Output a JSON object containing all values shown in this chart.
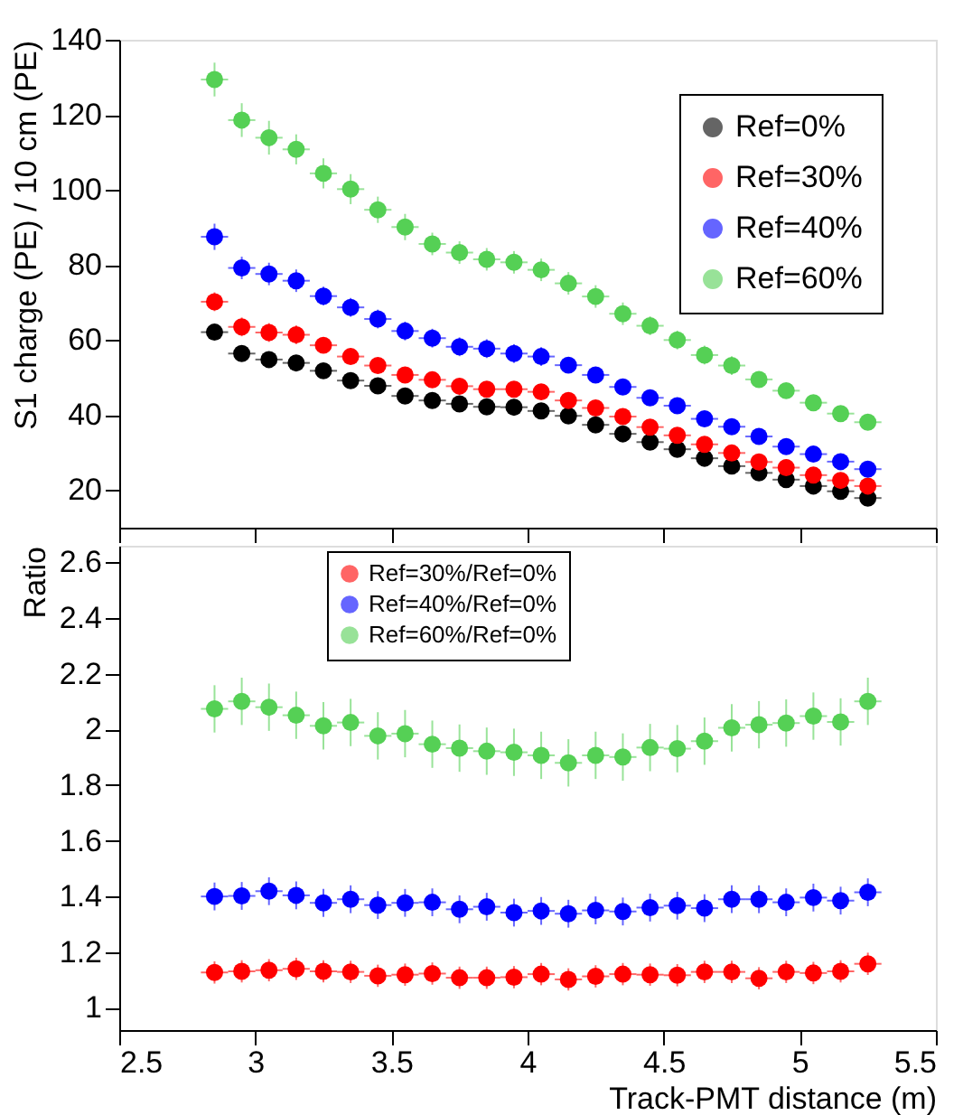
{
  "chart_data": [
    {
      "type": "scatter",
      "ylabel": "S1 charge (PE) / 10 cm (PE)",
      "xlim": [
        2.5,
        5.5
      ],
      "xticks": [
        2.5,
        3,
        3.5,
        4,
        4.5,
        5,
        5.5
      ],
      "ylim": [
        10,
        140
      ],
      "yticks": [
        20,
        40,
        60,
        80,
        100,
        120,
        140
      ],
      "tick_labels": "y",
      "grid": false,
      "legend": "top right",
      "marker": "circle",
      "x": [
        2.85,
        2.95,
        3.05,
        3.15,
        3.25,
        3.35,
        3.45,
        3.55,
        3.65,
        3.75,
        3.85,
        3.95,
        4.05,
        4.15,
        4.25,
        4.35,
        4.45,
        4.55,
        4.65,
        4.75,
        4.85,
        4.95,
        5.05,
        5.15,
        5.25
      ],
      "series": [
        {
          "name": "Ref=0%",
          "color": "#000000",
          "values": [
            62.1,
            56.4,
            54.8,
            53.9,
            51.8,
            49.2,
            47.8,
            45.1,
            43.9,
            43.0,
            42.2,
            42.1,
            41.1,
            39.8,
            37.4,
            35.0,
            32.8,
            30.9,
            28.5,
            26.4,
            24.6,
            22.8,
            21.1,
            19.7,
            17.9
          ],
          "errors": [
            2,
            2,
            2,
            2,
            1.5,
            1.5,
            1.5,
            1.5,
            1.5,
            1.5,
            1.5,
            1.5,
            1.5,
            1.5,
            1.5,
            1.5,
            1.5,
            1.5,
            1.5,
            1.5,
            1.5,
            1.5,
            1.5,
            1.5,
            1.5
          ],
          "xerrors": [
            0.05,
            0.05,
            0.05,
            0.05,
            0.05,
            0.05,
            0.05,
            0.05,
            0.05,
            0.05,
            0.05,
            0.05,
            0.05,
            0.05,
            0.05,
            0.05,
            0.05,
            0.05,
            0.05,
            0.05,
            0.05,
            0.05,
            0.05,
            0.05,
            0.05
          ]
        },
        {
          "name": "Ref=30%",
          "color": "#ff0000",
          "values": [
            70.2,
            63.5,
            62.0,
            61.4,
            58.6,
            55.6,
            53.2,
            50.7,
            49.4,
            47.7,
            46.9,
            46.9,
            46.2,
            43.9,
            41.9,
            39.6,
            36.8,
            34.6,
            32.2,
            29.9,
            27.5,
            26.0,
            24.0,
            22.6,
            21.1
          ],
          "errors": [
            2.5,
            2.5,
            2.5,
            2.5,
            2,
            2,
            2,
            2,
            2,
            2,
            2,
            2,
            2,
            2,
            2,
            2,
            2,
            2,
            2,
            1.5,
            1.5,
            1.5,
            1.5,
            1.5,
            1.5
          ],
          "xerrors": [
            0.05,
            0.05,
            0.05,
            0.05,
            0.05,
            0.05,
            0.05,
            0.05,
            0.05,
            0.05,
            0.05,
            0.05,
            0.05,
            0.05,
            0.05,
            0.05,
            0.05,
            0.05,
            0.05,
            0.05,
            0.05,
            0.05,
            0.05,
            0.05,
            0.05
          ]
        },
        {
          "name": "Ref=40%",
          "color": "#0000ff",
          "values": [
            87.5,
            79.2,
            77.6,
            75.8,
            71.7,
            68.7,
            65.6,
            62.4,
            60.5,
            58.2,
            57.7,
            56.4,
            55.6,
            53.3,
            50.7,
            47.5,
            44.6,
            42.5,
            39.0,
            36.9,
            34.3,
            31.6,
            29.6,
            27.6,
            25.6
          ],
          "errors": [
            3.5,
            3,
            3,
            3,
            2.5,
            2.5,
            2.5,
            2.5,
            2.5,
            2.5,
            2.5,
            2.5,
            2.5,
            2,
            2,
            2,
            2,
            2,
            2,
            2,
            2,
            2,
            2,
            2,
            2
          ],
          "xerrors": [
            0.05,
            0.05,
            0.05,
            0.05,
            0.05,
            0.05,
            0.05,
            0.05,
            0.05,
            0.05,
            0.05,
            0.05,
            0.05,
            0.05,
            0.05,
            0.05,
            0.05,
            0.05,
            0.05,
            0.05,
            0.05,
            0.05,
            0.05,
            0.05,
            0.05
          ]
        },
        {
          "name": "Ref=60%",
          "color": "#55d055",
          "values": [
            129.4,
            118.6,
            113.9,
            110.8,
            104.4,
            100.2,
            94.7,
            90.1,
            85.6,
            83.3,
            81.5,
            80.7,
            78.7,
            75.1,
            71.6,
            67.0,
            63.8,
            60.0,
            56.0,
            53.2,
            49.5,
            46.5,
            43.3,
            40.4,
            38.1
          ],
          "errors": [
            4.5,
            4.5,
            4.5,
            4,
            4,
            4,
            3.5,
            3.5,
            3,
            3,
            3,
            3,
            3,
            3,
            3,
            3,
            2.5,
            2.5,
            2.5,
            2.5,
            2,
            2,
            2,
            2,
            2
          ],
          "xerrors": [
            0.05,
            0.05,
            0.05,
            0.05,
            0.05,
            0.05,
            0.05,
            0.05,
            0.05,
            0.05,
            0.05,
            0.05,
            0.05,
            0.05,
            0.05,
            0.05,
            0.05,
            0.05,
            0.05,
            0.05,
            0.05,
            0.05,
            0.05,
            0.05,
            0.05
          ]
        }
      ]
    },
    {
      "type": "scatter",
      "xlabel": "Track-PMT distance (m)",
      "ylabel": "Ratio",
      "xlim": [
        2.5,
        5.5
      ],
      "xticks": [
        2.5,
        3,
        3.5,
        4,
        4.5,
        5,
        5.5
      ],
      "ylim": [
        0.92,
        2.66
      ],
      "yticks": [
        1,
        1.2,
        1.4,
        1.6,
        1.8,
        2,
        2.2,
        2.4,
        2.6
      ],
      "grid": false,
      "legend": "top",
      "marker": "circle",
      "x": [
        2.85,
        2.95,
        3.05,
        3.15,
        3.25,
        3.35,
        3.45,
        3.55,
        3.65,
        3.75,
        3.85,
        3.95,
        4.05,
        4.15,
        4.25,
        4.35,
        4.45,
        4.55,
        4.65,
        4.75,
        4.85,
        4.95,
        5.05,
        5.15,
        5.25
      ],
      "series": [
        {
          "name": "Ref=30%/Ref=0%",
          "color": "#ff0000",
          "values": [
            1.127,
            1.131,
            1.135,
            1.14,
            1.131,
            1.129,
            1.115,
            1.119,
            1.123,
            1.108,
            1.108,
            1.11,
            1.121,
            1.102,
            1.113,
            1.121,
            1.119,
            1.117,
            1.129,
            1.129,
            1.106,
            1.129,
            1.125,
            1.131,
            1.158
          ],
          "errors": [
            0.04,
            0.04,
            0.04,
            0.04,
            0.04,
            0.04,
            0.04,
            0.04,
            0.04,
            0.04,
            0.04,
            0.04,
            0.04,
            0.04,
            0.04,
            0.04,
            0.04,
            0.04,
            0.04,
            0.04,
            0.04,
            0.04,
            0.04,
            0.04,
            0.04
          ],
          "xerrors": [
            0.05,
            0.05,
            0.05,
            0.05,
            0.05,
            0.05,
            0.05,
            0.05,
            0.05,
            0.05,
            0.05,
            0.05,
            0.05,
            0.05,
            0.05,
            0.05,
            0.05,
            0.05,
            0.05,
            0.05,
            0.05,
            0.05,
            0.05,
            0.05,
            0.05
          ]
        },
        {
          "name": "Ref=40%/Ref=0%",
          "color": "#0000ff",
          "values": [
            1.4,
            1.402,
            1.419,
            1.404,
            1.377,
            1.39,
            1.369,
            1.377,
            1.379,
            1.354,
            1.363,
            1.342,
            1.348,
            1.338,
            1.35,
            1.346,
            1.36,
            1.367,
            1.358,
            1.39,
            1.39,
            1.379,
            1.396,
            1.385,
            1.415
          ],
          "errors": [
            0.05,
            0.05,
            0.05,
            0.05,
            0.05,
            0.05,
            0.05,
            0.05,
            0.05,
            0.05,
            0.05,
            0.05,
            0.05,
            0.05,
            0.05,
            0.05,
            0.05,
            0.05,
            0.05,
            0.05,
            0.05,
            0.05,
            0.05,
            0.05,
            0.05
          ],
          "xerrors": [
            0.05,
            0.05,
            0.05,
            0.05,
            0.05,
            0.05,
            0.05,
            0.05,
            0.05,
            0.05,
            0.05,
            0.05,
            0.05,
            0.05,
            0.05,
            0.05,
            0.05,
            0.05,
            0.05,
            0.05,
            0.05,
            0.05,
            0.05,
            0.05,
            0.05
          ]
        },
        {
          "name": "Ref=60%/Ref=0%",
          "color": "#55d055",
          "values": [
            2.074,
            2.101,
            2.08,
            2.051,
            2.013,
            2.025,
            1.977,
            1.985,
            1.947,
            1.933,
            1.922,
            1.918,
            1.907,
            1.88,
            1.907,
            1.901,
            1.935,
            1.931,
            1.958,
            2.006,
            2.017,
            2.023,
            2.048,
            2.027,
            2.101
          ],
          "errors": [
            0.085,
            0.085,
            0.085,
            0.085,
            0.085,
            0.085,
            0.085,
            0.085,
            0.085,
            0.085,
            0.085,
            0.085,
            0.085,
            0.085,
            0.085,
            0.085,
            0.085,
            0.085,
            0.085,
            0.085,
            0.085,
            0.085,
            0.085,
            0.085,
            0.085
          ],
          "xerrors": [
            0.05,
            0.05,
            0.05,
            0.05,
            0.05,
            0.05,
            0.05,
            0.05,
            0.05,
            0.05,
            0.05,
            0.05,
            0.05,
            0.05,
            0.05,
            0.05,
            0.05,
            0.05,
            0.05,
            0.05,
            0.05,
            0.05,
            0.05,
            0.05,
            0.05
          ]
        }
      ]
    }
  ]
}
